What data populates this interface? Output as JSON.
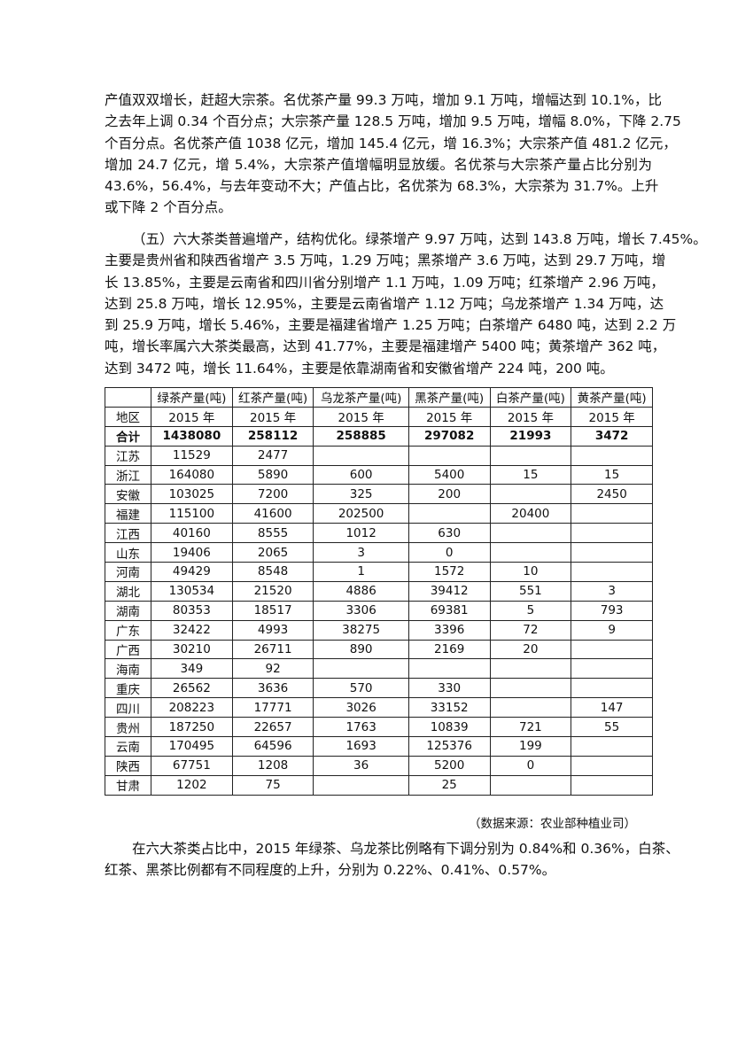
{
  "paragraphs": [
    {
      "lines": [
        "产值双双增长，赶超大宗茶。名优茶产量 99.3 万吨，增加 9.1 万吨，增幅达到 10.1%，比",
        "之去年上调 0.34 个百分点；大宗茶产量 128.5 万吨，增加 9.5 万吨，增幅 8.0%，下降 2.75",
        "个百分点。名优茶产值 1038 亿元，增加 145.4 亿元，增 16.3%；大宗茶产值 481.2 亿元，",
        "增加 24.7 亿元，增 5.4%，大宗茶产值增幅明显放缓。名优茶与大宗茶产量占比分别为",
        "43.6%，56.4%，与去年变动不大；产值占比，名优茶为 68.3%，大宗茶为 31.7%。上升",
        "或下降 2 个百分点。"
      ]
    },
    {
      "lines": [
        "（五）六大茶类普遍增产，结构优化。绿茶增产 9.97 万吨，达到 143.8 万吨，增长 7.45%。",
        "主要是贵州省和陕西省增产 3.5 万吨，1.29 万吨；黑茶增产 3.6 万吨，达到 29.7 万吨，增",
        "长 13.85%，主要是云南省和四川省分别增产 1.1 万吨，1.09 万吨；红茶增产 2.96 万吨，",
        "达到 25.8 万吨，增长 12.95%，主要是云南省增产 1.12 万吨；乌龙茶增产 1.34 万吨，达",
        "到 25.9 万吨，增长 5.46%，主要是福建省增产 1.25 万吨；白茶增产 6480 吨，达到 2.2 万",
        "吨，增长率属六大茶类最高，达到 41.77%，主要是福建增产 5400 吨；黄茶增产 362 吨，",
        "达到 3472 吨，增长 11.64%，主要是依靠湖南省和安徽省增产 224 吨，200 吨。"
      ]
    },
    {
      "lines": [
        "在六大茶类占比中，2015 年绿茶、乌龙茶比例略有下调分别为 0.84%和 0.36%，白茶、",
        "红茶、黑茶比例都有不同程度的上升，分别为 0.22%、0.41%、0.57%。"
      ]
    }
  ],
  "table": {
    "region_header": "地区",
    "columns": [
      {
        "name": "绿茶产量(吨)",
        "year": "2015 年"
      },
      {
        "name": "红茶产量(吨)",
        "year": "2015 年"
      },
      {
        "name": "乌龙茶产量(吨)",
        "year": "2015 年"
      },
      {
        "name": "黑茶产量(吨)",
        "year": "2015 年"
      },
      {
        "name": "白茶产量(吨)",
        "year": "2015 年"
      },
      {
        "name": "黄茶产量(吨)",
        "year": "2015 年"
      }
    ],
    "rows": [
      [
        "合计",
        1438080,
        258112,
        258885,
        297082,
        21993,
        3472
      ],
      [
        "江苏",
        11529,
        2477,
        null,
        null,
        null,
        null
      ],
      [
        "浙江",
        164080,
        5890,
        600,
        5400,
        15,
        15
      ],
      [
        "安徽",
        103025,
        7200,
        325,
        200,
        null,
        2450
      ],
      [
        "福建",
        115100,
        41600,
        202500,
        null,
        20400,
        null
      ],
      [
        "江西",
        40160,
        8555,
        1012,
        630,
        null,
        null
      ],
      [
        "山东",
        19406,
        2065,
        3,
        0,
        null,
        null
      ],
      [
        "河南",
        49429,
        8548,
        1,
        1572,
        10,
        null
      ],
      [
        "湖北",
        130534,
        21520,
        4886,
        39412,
        551,
        3
      ],
      [
        "湖南",
        80353,
        18517,
        3306,
        69381,
        5,
        793
      ],
      [
        "广东",
        32422,
        4993,
        38275,
        3396,
        72,
        9
      ],
      [
        "广西",
        30210,
        26711,
        890,
        2169,
        20,
        null
      ],
      [
        "海南",
        349,
        92,
        null,
        null,
        null,
        null
      ],
      [
        "重庆",
        26562,
        3636,
        570,
        330,
        null,
        null
      ],
      [
        "四川",
        208223,
        17771,
        3026,
        33152,
        null,
        147
      ],
      [
        "贵州",
        187250,
        22657,
        1763,
        10839,
        721,
        55
      ],
      [
        "云南",
        170495,
        64596,
        1693,
        125376,
        199,
        null
      ],
      [
        "陕西",
        67751,
        1208,
        36,
        5200,
        0,
        null
      ],
      [
        "甘肃",
        1202,
        75,
        null,
        25,
        null,
        null
      ]
    ],
    "source": "（数据来源：农业部种植业司）"
  }
}
